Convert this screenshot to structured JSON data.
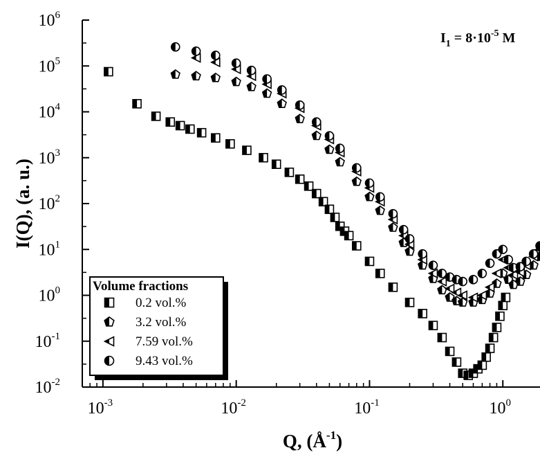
{
  "chart_data": {
    "type": "scatter",
    "title": "",
    "annotation": {
      "base": "I",
      "sub": "1",
      "mid": " = 8·10",
      "sup": "-5",
      "end": " M"
    },
    "x_axis": {
      "scale": "log",
      "range": [
        0.0007,
        1.9
      ],
      "ticks": [
        {
          "value": 0.001,
          "base": "10",
          "exp": "-3"
        },
        {
          "value": 0.01,
          "base": "10",
          "exp": "-2"
        },
        {
          "value": 0.1,
          "base": "10",
          "exp": "-1"
        },
        {
          "value": 1,
          "base": "10",
          "exp": "0"
        }
      ],
      "label": {
        "main": "Q, (Å",
        "sup": "-1",
        "close": ")"
      }
    },
    "y_axis": {
      "scale": "log",
      "range": [
        0.01,
        1000000
      ],
      "ticks": [
        {
          "value": 0.01,
          "base": "10",
          "exp": "-2"
        },
        {
          "value": 0.1,
          "base": "10",
          "exp": "-1"
        },
        {
          "value": 1,
          "base": "10",
          "exp": "0"
        },
        {
          "value": 10,
          "base": "10",
          "exp": "1"
        },
        {
          "value": 100,
          "base": "10",
          "exp": "2"
        },
        {
          "value": 1000,
          "base": "10",
          "exp": "3"
        },
        {
          "value": 10000,
          "base": "10",
          "exp": "4"
        },
        {
          "value": 100000,
          "base": "10",
          "exp": "5"
        },
        {
          "value": 1000000,
          "base": "10",
          "exp": "6"
        }
      ],
      "label": "I(Q), (a. u.)"
    },
    "legend": {
      "title": "Volume fractions",
      "position": "bottom-left"
    },
    "series": [
      {
        "name": "0.2 vol.%",
        "marker": "half-square",
        "x": [
          0.0011,
          0.0018,
          0.0025,
          0.0032,
          0.0038,
          0.0045,
          0.0055,
          0.007,
          0.009,
          0.012,
          0.016,
          0.02,
          0.025,
          0.03,
          0.035,
          0.04,
          0.045,
          0.05,
          0.055,
          0.06,
          0.065,
          0.07,
          0.08,
          0.1,
          0.12,
          0.15,
          0.2,
          0.25,
          0.3,
          0.35,
          0.4,
          0.45,
          0.5,
          0.55,
          0.6,
          0.65,
          0.7,
          0.75,
          0.8,
          0.85,
          0.9,
          0.95,
          1.0,
          1.05
        ],
        "y": [
          75000,
          15000,
          8000,
          6000,
          5000,
          4200,
          3500,
          2700,
          2000,
          1450,
          1000,
          720,
          480,
          340,
          240,
          165,
          110,
          75,
          50,
          32,
          25,
          20,
          12,
          5.5,
          3,
          1.5,
          0.7,
          0.4,
          0.22,
          0.12,
          0.06,
          0.035,
          0.02,
          0.018,
          0.02,
          0.025,
          0.03,
          0.045,
          0.07,
          0.12,
          0.2,
          0.35,
          0.6,
          0.9
        ]
      },
      {
        "name": "3.2 vol.%",
        "marker": "pentagon",
        "x": [
          0.0035,
          0.005,
          0.007,
          0.01,
          0.013,
          0.017,
          0.022,
          0.03,
          0.04,
          0.05,
          0.06,
          0.08,
          0.1,
          0.12,
          0.15,
          0.18,
          0.2,
          0.25,
          0.3,
          0.35,
          0.4,
          0.45,
          0.5,
          0.6,
          0.7,
          0.8,
          0.9,
          1.0,
          1.1,
          1.2,
          1.35,
          1.5,
          1.7,
          1.9
        ],
        "y": [
          65000,
          60000,
          55000,
          45000,
          35000,
          25000,
          15000,
          7000,
          3000,
          1500,
          800,
          300,
          140,
          70,
          30,
          14,
          9,
          4.5,
          2.3,
          1.3,
          0.9,
          0.75,
          0.7,
          0.7,
          0.8,
          1.1,
          1.8,
          3,
          2.2,
          1.7,
          2,
          2.8,
          4.5,
          7
        ]
      },
      {
        "name": "7.59 vol.%",
        "marker": "half-triangle",
        "x": [
          0.005,
          0.007,
          0.01,
          0.013,
          0.017,
          0.022,
          0.03,
          0.04,
          0.05,
          0.06,
          0.08,
          0.1,
          0.12,
          0.15,
          0.18,
          0.2,
          0.25,
          0.3,
          0.35,
          0.4,
          0.45,
          0.5,
          0.6,
          0.7,
          0.8,
          0.9,
          1.0,
          1.1,
          1.2,
          1.35,
          1.5,
          1.7,
          1.9
        ],
        "y": [
          150000,
          120000,
          85000,
          60000,
          40000,
          25000,
          12000,
          5000,
          2500,
          1300,
          500,
          220,
          110,
          45,
          20,
          13,
          6,
          3,
          2,
          1.4,
          1.15,
          1.0,
          0.9,
          1.0,
          1.5,
          3,
          6,
          4,
          2.8,
          3.2,
          4.5,
          7,
          10
        ]
      },
      {
        "name": "9.43 vol.%",
        "marker": "half-circle",
        "x": [
          0.0035,
          0.005,
          0.007,
          0.01,
          0.013,
          0.017,
          0.022,
          0.03,
          0.04,
          0.05,
          0.06,
          0.08,
          0.1,
          0.12,
          0.15,
          0.18,
          0.2,
          0.25,
          0.3,
          0.35,
          0.4,
          0.45,
          0.5,
          0.6,
          0.7,
          0.8,
          0.9,
          1.0,
          1.1,
          1.2,
          1.35,
          1.5,
          1.7,
          1.9
        ],
        "y": [
          260000,
          210000,
          170000,
          115000,
          80000,
          52000,
          30000,
          14000,
          6000,
          3000,
          1600,
          600,
          280,
          140,
          60,
          27,
          17,
          8,
          4.5,
          3,
          2.5,
          2.2,
          2.0,
          2.2,
          3,
          5,
          8,
          10,
          6,
          4,
          4.2,
          5.5,
          8,
          12
        ]
      }
    ]
  }
}
